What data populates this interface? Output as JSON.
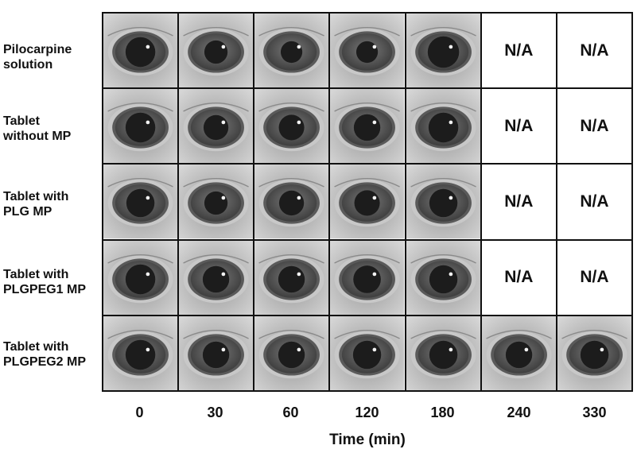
{
  "figure": {
    "row_labels": [
      [
        "Pilocarpine",
        "solution"
      ],
      [
        "Tablet",
        "without MP"
      ],
      [
        "Tablet with",
        "PLG MP"
      ],
      [
        "Tablet with",
        "PLGPEG1 MP"
      ],
      [
        "Tablet with",
        "PLGPEG2 MP"
      ]
    ],
    "time_points": [
      "0",
      "30",
      "60",
      "120",
      "180",
      "240",
      "330"
    ],
    "x_axis_title": "Time (min)",
    "na_text": "N/A",
    "cells": [
      [
        "photo",
        "photo",
        "photo",
        "photo",
        "photo",
        "na",
        "na"
      ],
      [
        "photo",
        "photo",
        "photo",
        "photo",
        "photo",
        "na",
        "na"
      ],
      [
        "photo",
        "photo",
        "photo",
        "photo",
        "photo",
        "na",
        "na"
      ],
      [
        "photo",
        "photo",
        "photo",
        "photo",
        "photo",
        "na",
        "na"
      ],
      [
        "photo",
        "photo",
        "photo",
        "photo",
        "photo",
        "photo",
        "photo"
      ]
    ],
    "pupil_size": [
      [
        0.55,
        0.35,
        0.3,
        0.3,
        0.6
      ],
      [
        0.55,
        0.4,
        0.42,
        0.45,
        0.55
      ],
      [
        0.5,
        0.35,
        0.4,
        0.42,
        0.5
      ],
      [
        0.55,
        0.45,
        0.45,
        0.48,
        0.5
      ],
      [
        0.55,
        0.45,
        0.45,
        0.5,
        0.5,
        0.45,
        0.5
      ]
    ]
  }
}
